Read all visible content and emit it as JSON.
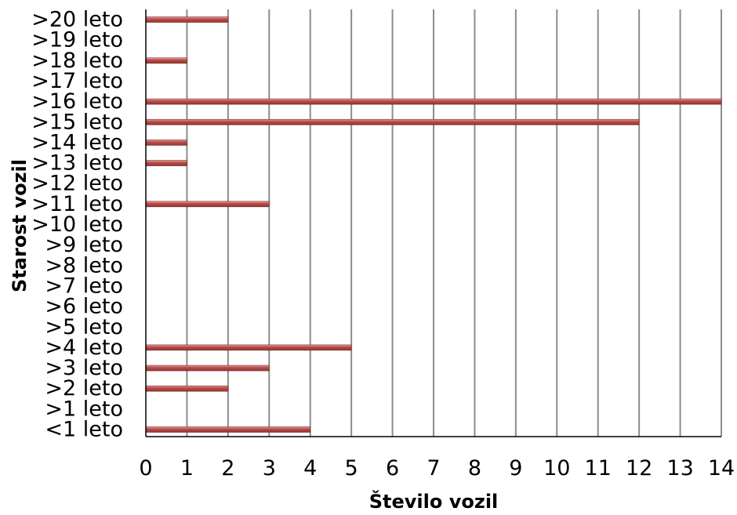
{
  "chart_data": {
    "type": "bar",
    "orientation": "horizontal",
    "categories": [
      ">20 leto",
      ">19 leto",
      ">18 leto",
      ">17 leto",
      ">16 leto",
      ">15 leto",
      ">14 leto",
      ">13 leto",
      ">12 leto",
      ">11 leto",
      ">10 leto",
      ">9 leto",
      ">8 leto",
      ">7 leto",
      ">6 leto",
      ">5 leto",
      ">4 leto",
      ">3 leto",
      ">2 leto",
      ">1 leto",
      "<1 leto"
    ],
    "values": [
      2,
      0,
      1,
      0,
      14,
      12,
      1,
      1,
      0,
      3,
      0,
      0,
      0,
      0,
      0,
      0,
      5,
      3,
      2,
      0,
      4
    ],
    "xlabel": "Število vozil",
    "ylabel": "Starost  vozil",
    "xlim": [
      0,
      14
    ],
    "xticks": [
      "0",
      "1",
      "2",
      "3",
      "4",
      "5",
      "6",
      "7",
      "8",
      "9",
      "10",
      "11",
      "12",
      "13",
      "14"
    ],
    "grid": "vertical",
    "legend": "none",
    "colors": {
      "bar": "#c0504d",
      "bar_highlight": "#e6a8a6",
      "grid": "#8c8c8c",
      "axis": "#000000"
    }
  }
}
